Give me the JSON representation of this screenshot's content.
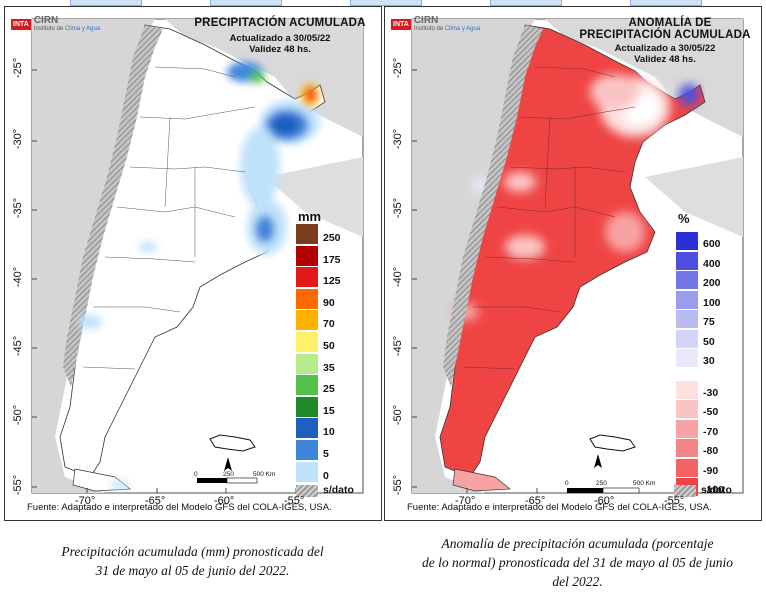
{
  "logo": {
    "inta": "INTA",
    "cirn": "CIRN",
    "sub_prefix": "Instituto de",
    "sub_highlight": "Clima y Agua"
  },
  "left_panel": {
    "title": "PRECIPITACIÓN ACUMULADA",
    "updated": "Actualizado a 30/05/22",
    "validity": "Validez 48 hs.",
    "unit": "mm",
    "legend": [
      {
        "label": "250",
        "color": "#7a3b1e"
      },
      {
        "label": "175",
        "color": "#b30000"
      },
      {
        "label": "125",
        "color": "#e31a1c"
      },
      {
        "label": "90",
        "color": "#ff6a00"
      },
      {
        "label": "70",
        "color": "#ffb300"
      },
      {
        "label": "50",
        "color": "#fff06b"
      },
      {
        "label": "35",
        "color": "#b6ec8a"
      },
      {
        "label": "25",
        "color": "#52c24a"
      },
      {
        "label": "15",
        "color": "#1f8a2a"
      },
      {
        "label": "10",
        "color": "#1f5fbf"
      },
      {
        "label": "5",
        "color": "#3f86db"
      },
      {
        "label": "0",
        "color": "#bfe2fb"
      }
    ],
    "nodata_label": "s/dato",
    "source": "Fuente: Adaptado e interpretado del Modelo GFS del COLA-IGES, USA.",
    "lat_labels": [
      "-25°",
      "-30°",
      "-35°",
      "-40°",
      "-45°",
      "-50°",
      "-55°"
    ],
    "lon_labels": [
      "-70°",
      "-65°",
      "-60°",
      "-55°"
    ],
    "scale": {
      "start": "0",
      "mid": "250",
      "end": "500 Km",
      "north": "N"
    }
  },
  "right_panel": {
    "title_line1": "ANOMALÍA DE",
    "title_line2": "PRECIPITACIÓN ACUMULADA",
    "updated": "Actualizado a 30/05/22",
    "validity": "Validez 48 hs.",
    "unit": "%",
    "legend": [
      {
        "label": "600",
        "color": "#2b2fd6"
      },
      {
        "label": "400",
        "color": "#4c4fde"
      },
      {
        "label": "200",
        "color": "#7376e6"
      },
      {
        "label": "100",
        "color": "#9a9ced"
      },
      {
        "label": "75",
        "color": "#b9bbf2"
      },
      {
        "label": "50",
        "color": "#d3d4f7"
      },
      {
        "label": "30",
        "color": "#e9e9fb"
      },
      {
        "label": "-30",
        "color": "#fde0e0"
      },
      {
        "label": "-50",
        "color": "#fbc4c4"
      },
      {
        "label": "-70",
        "color": "#f8a3a3"
      },
      {
        "label": "-80",
        "color": "#f58585"
      },
      {
        "label": "-90",
        "color": "#f26363"
      },
      {
        "label": "-100",
        "color": "#ef4444"
      }
    ],
    "nodata_label": "s/dato",
    "source": "Fuente: Adaptado e interpretado del Modelo GFS del COLA-IGES, USA.",
    "lat_labels": [
      "-25°",
      "-30°",
      "-35°",
      "-40°",
      "-45°",
      "-50°",
      "-55°"
    ],
    "lon_labels": [
      "-70°",
      "-65°",
      "-60°",
      "-55°"
    ],
    "scale": {
      "start": "0",
      "mid": "250",
      "end": "500 Km",
      "north": "N"
    }
  },
  "captions": {
    "left": [
      "Precipitación acumulada (mm) pronosticada del",
      "31 de mayo al 05 de junio del 2022."
    ],
    "right": [
      "Anomalía de precipitación acumulada (porcentaje",
      "de lo normal) pronosticada del 31 de mayo al 05 de junio",
      "del 2022."
    ]
  }
}
